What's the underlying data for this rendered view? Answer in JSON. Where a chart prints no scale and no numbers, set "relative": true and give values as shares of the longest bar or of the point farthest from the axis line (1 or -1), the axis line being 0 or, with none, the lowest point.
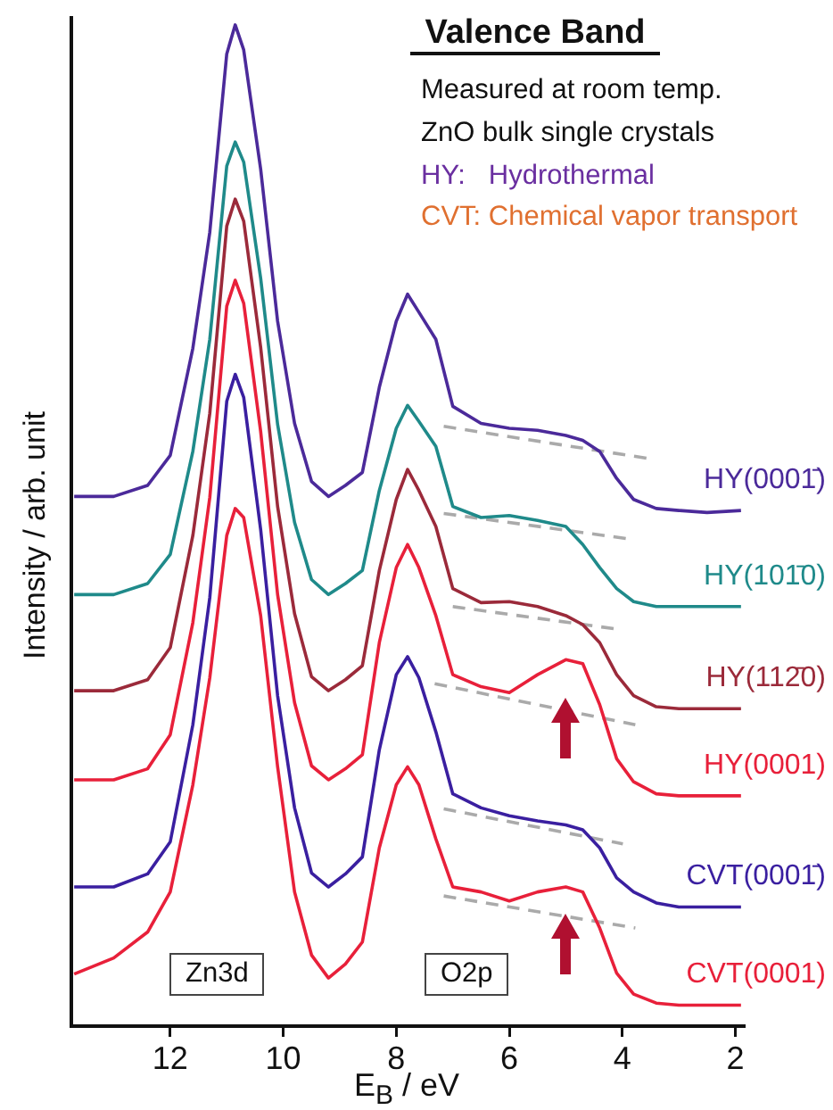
{
  "chart_data": {
    "type": "line",
    "title": "Valence Band",
    "xlabel": "E$_{B}$ / eV",
    "ylabel": "Intensity / arb. unit",
    "annotations": [
      "Measured at room temp.",
      "ZnO bulk single crystals",
      "HY:   Hydrothermal",
      "CVT: Chemical vapor transport",
      "Zn3d",
      "O2p"
    ],
    "relative": true,
    "legend": false,
    "marker": "none",
    "line_style": "solid",
    "xlim": [
      13.75,
      1.85
    ],
    "xticks": [
      12,
      10,
      8,
      6,
      4,
      2
    ],
    "x": [
      13.7,
      13.0,
      12.4,
      12.0,
      11.6,
      11.3,
      11.0,
      10.85,
      10.7,
      10.4,
      10.1,
      9.8,
      9.5,
      9.2,
      8.9,
      8.6,
      8.3,
      8.0,
      7.8,
      7.6,
      7.3,
      7.0,
      6.5,
      6.0,
      5.5,
      5.0,
      4.7,
      4.4,
      4.1,
      3.8,
      3.4,
      3.0,
      2.5,
      1.9
    ],
    "series": [
      {
        "name": "HY(0001̄)",
        "color": "#4b2a9a",
        "values": [
          0.529,
          0.529,
          0.54,
          0.57,
          0.677,
          0.793,
          0.971,
          1,
          0.975,
          0.856,
          0.704,
          0.602,
          0.544,
          0.529,
          0.54,
          0.553,
          0.638,
          0.704,
          0.731,
          0.713,
          0.686,
          0.619,
          0.602,
          0.597,
          0.595,
          0.59,
          0.585,
          0.574,
          0.547,
          0.526,
          0.517,
          0.515,
          0.513,
          0.515
        ]
      },
      {
        "name": "HY(101̄0)",
        "color": "#1f8a8a",
        "values": [
          0.431,
          0.431,
          0.442,
          0.471,
          0.574,
          0.686,
          0.859,
          0.883,
          0.863,
          0.747,
          0.601,
          0.503,
          0.446,
          0.431,
          0.442,
          0.455,
          0.535,
          0.597,
          0.62,
          0.604,
          0.579,
          0.519,
          0.508,
          0.51,
          0.505,
          0.499,
          0.481,
          0.458,
          0.437,
          0.424,
          0.419,
          0.419,
          0.419,
          0.419
        ]
      },
      {
        "name": "HY(112̄0)",
        "color": "#9b2a3a",
        "values": [
          0.335,
          0.335,
          0.346,
          0.378,
          0.49,
          0.612,
          0.799,
          0.826,
          0.804,
          0.678,
          0.519,
          0.412,
          0.349,
          0.335,
          0.346,
          0.36,
          0.455,
          0.526,
          0.556,
          0.535,
          0.499,
          0.437,
          0.423,
          0.424,
          0.419,
          0.41,
          0.401,
          0.383,
          0.351,
          0.33,
          0.319,
          0.317,
          0.317,
          0.317
        ]
      },
      {
        "name": "HY(0001)",
        "color": "#e8203a",
        "values": [
          0.246,
          0.246,
          0.257,
          0.291,
          0.403,
          0.528,
          0.719,
          0.745,
          0.722,
          0.594,
          0.431,
          0.323,
          0.26,
          0.246,
          0.257,
          0.271,
          0.383,
          0.458,
          0.481,
          0.458,
          0.41,
          0.351,
          0.339,
          0.333,
          0.351,
          0.366,
          0.362,
          0.321,
          0.267,
          0.244,
          0.232,
          0.23,
          0.23,
          0.23
        ]
      },
      {
        "name": "CVT(0001̄)",
        "color": "#3a1fa0",
        "values": [
          0.139,
          0.139,
          0.152,
          0.184,
          0.301,
          0.428,
          0.624,
          0.651,
          0.628,
          0.496,
          0.33,
          0.218,
          0.153,
          0.139,
          0.152,
          0.169,
          0.276,
          0.351,
          0.369,
          0.348,
          0.294,
          0.232,
          0.218,
          0.21,
          0.205,
          0.201,
          0.196,
          0.178,
          0.148,
          0.134,
          0.123,
          0.119,
          0.119,
          0.119
        ]
      },
      {
        "name": "CVT(0001)",
        "color": "#e8203a",
        "values": [
          0.052,
          0.068,
          0.094,
          0.134,
          0.241,
          0.348,
          0.49,
          0.517,
          0.508,
          0.41,
          0.259,
          0.134,
          0.071,
          0.048,
          0.062,
          0.084,
          0.178,
          0.241,
          0.259,
          0.241,
          0.187,
          0.139,
          0.134,
          0.125,
          0.134,
          0.139,
          0.134,
          0.098,
          0.053,
          0.032,
          0.023,
          0.021,
          0.021,
          0.021
        ]
      },
      {
        "type": "line",
        "color": "#aaaaaa",
        "line_style": "dashed",
        "x": [
          7.16,
          3.55
        ],
        "values": [
          0.599,
          0.567
        ]
      },
      {
        "type": "line",
        "color": "#aaaaaa",
        "line_style": "dashed",
        "x": [
          7.16,
          3.93
        ],
        "values": [
          0.512,
          0.487
        ]
      },
      {
        "type": "line",
        "color": "#aaaaaa",
        "line_style": "dashed",
        "x": [
          7.0,
          4.03
        ],
        "values": [
          0.419,
          0.396
        ]
      },
      {
        "type": "line",
        "color": "#aaaaaa",
        "line_style": "dashed",
        "x": [
          7.32,
          3.77
        ],
        "values": [
          0.342,
          0.301
        ]
      },
      {
        "type": "line",
        "color": "#aaaaaa",
        "line_style": "dashed",
        "x": [
          7.16,
          3.99
        ],
        "values": [
          0.217,
          0.182
        ]
      },
      {
        "type": "line",
        "color": "#aaaaaa",
        "line_style": "dashed",
        "x": [
          7.16,
          3.77
        ],
        "values": [
          0.13,
          0.098
        ]
      }
    ]
  }
}
